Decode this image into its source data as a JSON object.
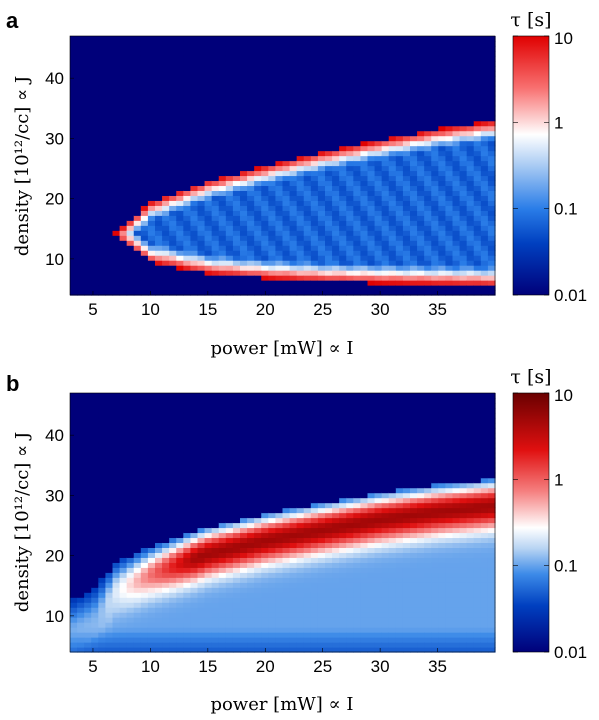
{
  "chart_data": [
    {
      "type": "heatmap",
      "panel_label": "a",
      "xlabel": "power [mW] ∝ I",
      "ylabel": "density [10¹²/cc]  ∝ J",
      "x_ticks": [
        5,
        10,
        15,
        20,
        25,
        30,
        35
      ],
      "y_ticks": [
        10,
        20,
        30,
        40
      ],
      "xlim": [
        3,
        40
      ],
      "ylim": [
        4,
        47
      ],
      "colorbar": {
        "title": "τ [s]",
        "scale": "log",
        "range": [
          0.01,
          10
        ],
        "ticks": [
          "0.01",
          "0.1",
          "1",
          "10"
        ],
        "colormap": "blue-white-red"
      },
      "region": {
        "description": "Wedge where τ is finite; background τ = 0.01",
        "tip_power": 6.8,
        "tip_density": 14,
        "upper_edge": [
          [
            6.8,
            14
          ],
          [
            10,
            19.5
          ],
          [
            15,
            23.0
          ],
          [
            20,
            25.5
          ],
          [
            25,
            27.8
          ],
          [
            30,
            29.8
          ],
          [
            35,
            31.6
          ],
          [
            40,
            33.0
          ]
        ],
        "lower_edge": [
          [
            6.8,
            14
          ],
          [
            10,
            9.5
          ],
          [
            15,
            7.6
          ],
          [
            20,
            6.8
          ],
          [
            25,
            6.3
          ],
          [
            30,
            6.0
          ],
          [
            35,
            5.8
          ],
          [
            40,
            5.6
          ]
        ],
        "edge_tau": 10,
        "interior_min_tau": 0.07
      }
    },
    {
      "type": "heatmap",
      "panel_label": "b",
      "xlabel": "power [mW] ∝ I",
      "ylabel": "density [10¹²/cc]  ∝ J",
      "x_ticks": [
        5,
        10,
        15,
        20,
        25,
        30,
        35
      ],
      "y_ticks": [
        10,
        20,
        30,
        40
      ],
      "xlim": [
        3,
        40
      ],
      "ylim": [
        4,
        47
      ],
      "colorbar": {
        "title": "τ [s]",
        "scale": "log",
        "range": [
          0.01,
          10
        ],
        "ticks": [
          "0.01",
          "0.1",
          "1",
          "10"
        ],
        "colormap": "blue-white-red-darkred"
      },
      "region": {
        "description": "Region below upper boundary; high τ band near boundary, lower τ toward small density",
        "upper_edge": [
          [
            3,
            12.5
          ],
          [
            5,
            14.5
          ],
          [
            7,
            19.0
          ],
          [
            10,
            21.5
          ],
          [
            15,
            24.8
          ],
          [
            20,
            27.0
          ],
          [
            25,
            28.8
          ],
          [
            30,
            30.5
          ],
          [
            35,
            31.8
          ],
          [
            40,
            32.8
          ]
        ],
        "peak_tau": 5,
        "bottom_tau": 0.03
      }
    }
  ]
}
